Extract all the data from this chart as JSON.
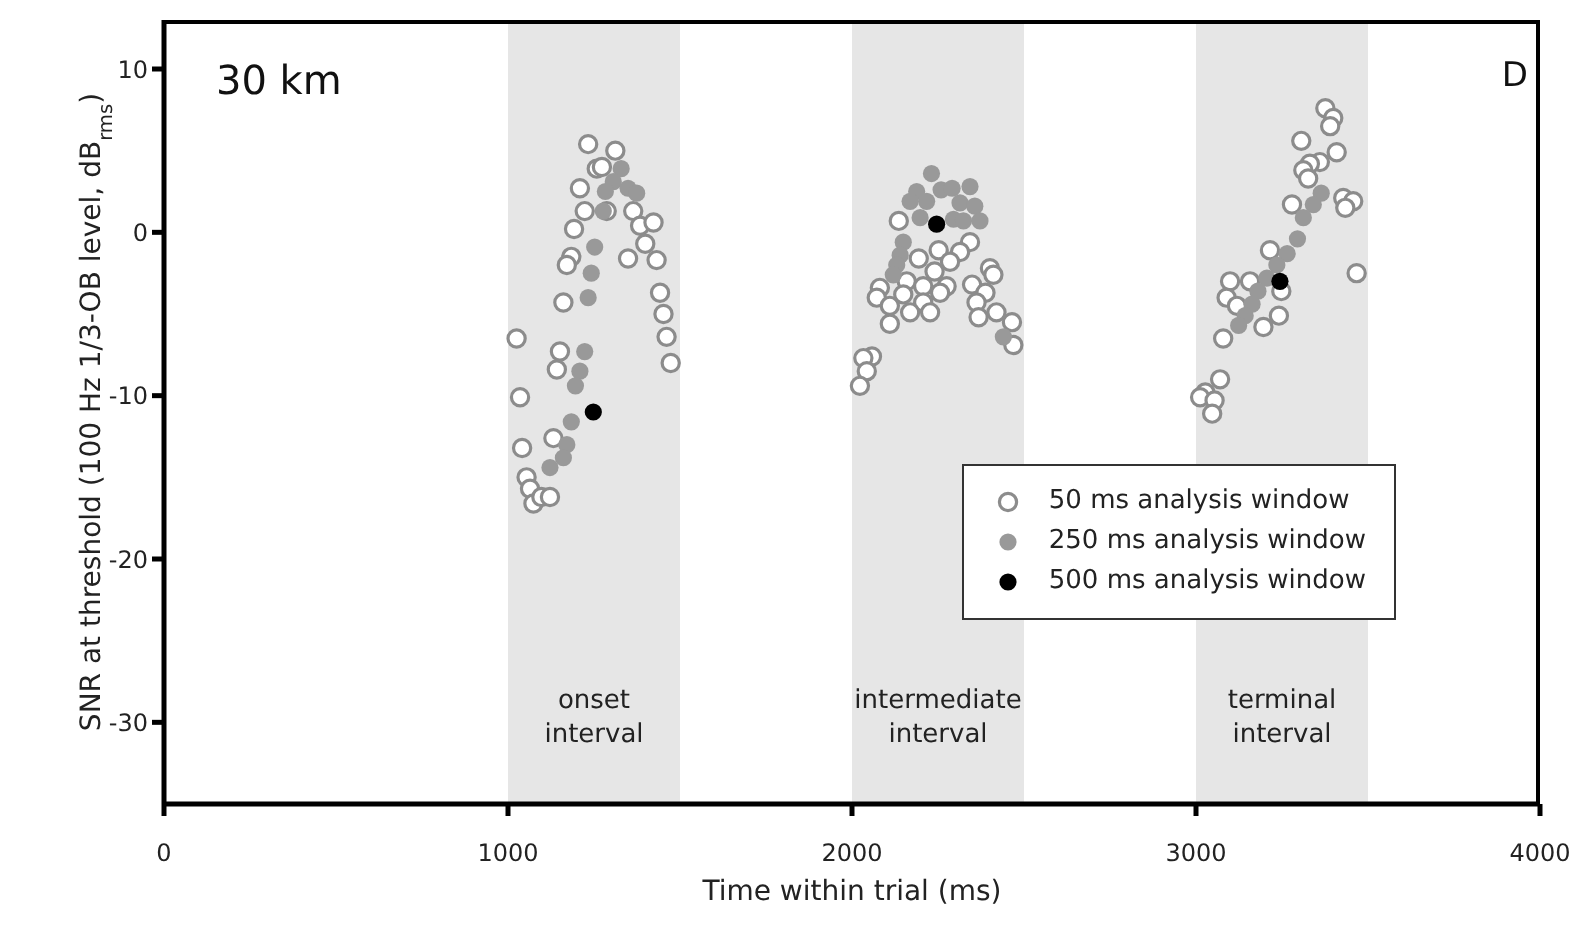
{
  "chart_data": {
    "type": "scatter",
    "xlabel": "Time within trial (ms)",
    "ylabel": "SNR at threshold (100 Hz 1/3-OB level, dB$_{rms}$)",
    "annotations": [
      "30 km",
      "D"
    ],
    "xlim": [
      0,
      4000
    ],
    "xticks": [
      0,
      1000,
      2000,
      3000,
      4000
    ],
    "ylim": [
      -35,
      13
    ],
    "yticks": [
      -30,
      -20,
      -10,
      0,
      10
    ],
    "grid": false,
    "legend": "right",
    "marker": "circle",
    "bands": [
      {
        "axis": "x",
        "from": 1000,
        "to": 1500,
        "label": "onset interval",
        "color": "#e6e6e6"
      },
      {
        "axis": "x",
        "from": 2000,
        "to": 2500,
        "label": "intermediate interval",
        "color": "#e6e6e6"
      },
      {
        "axis": "x",
        "from": 3000,
        "to": 3500,
        "label": "terminal interval",
        "color": "#e6e6e6"
      }
    ],
    "series": [
      {
        "name": "50 ms analysis window",
        "color": "#8c8c8c",
        "x": [
          1233,
          1312,
          1258,
          1273,
          1209,
          1223,
          1192,
          1184,
          1171,
          1161,
          1025,
          1151,
          1142,
          1035,
          1041,
          1132,
          1054,
          1064,
          1074,
          1097,
          1122,
          1364,
          1384,
          1423,
          1349,
          1399,
          1432,
          1442,
          1452,
          1461,
          1473,
          1287,
          2136,
          2343,
          2252,
          2194,
          2314,
          2285,
          2240,
          2401,
          2411,
          2081,
          2159,
          2207,
          2275,
          2349,
          2072,
          2149,
          2110,
          2256,
          2388,
          2362,
          2207,
          2169,
          2227,
          2368,
          2420,
          2110,
          2465,
          2469,
          2058,
          2033,
          2043,
          2023,
          3376,
          3399,
          3390,
          3306,
          3409,
          3360,
          3331,
          3312,
          3326,
          3428,
          3457,
          3434,
          3279,
          3467,
          3215,
          3099,
          3157,
          3089,
          3119,
          3248,
          3241,
          3196,
          3079,
          3070,
          3027,
          3012,
          3054,
          3047
        ],
        "values": [
          5.4,
          5.0,
          3.9,
          4.0,
          2.7,
          1.3,
          0.2,
          -1.5,
          -2.0,
          -4.3,
          -6.5,
          -7.3,
          -8.4,
          -10.1,
          -13.2,
          -12.6,
          -15.0,
          -15.7,
          -16.6,
          -16.2,
          -16.2,
          1.3,
          0.4,
          0.6,
          -1.6,
          -0.7,
          -1.7,
          -3.7,
          -5.0,
          -6.4,
          -8.0,
          1.3,
          0.7,
          -0.6,
          -1.1,
          -1.6,
          -1.2,
          -1.8,
          -2.4,
          -2.2,
          -2.6,
          -3.4,
          -3.0,
          -3.3,
          -3.3,
          -3.2,
          -4.0,
          -3.8,
          -4.5,
          -3.7,
          -3.7,
          -4.3,
          -4.3,
          -4.9,
          -4.9,
          -5.2,
          -4.9,
          -5.6,
          -5.5,
          -6.9,
          -7.6,
          -7.7,
          -8.5,
          -9.4,
          7.6,
          7.0,
          6.5,
          5.6,
          4.9,
          4.3,
          4.2,
          3.8,
          3.3,
          2.1,
          1.9,
          1.5,
          1.7,
          -2.5,
          -1.1,
          -3.0,
          -3.0,
          -4.0,
          -4.5,
          -3.6,
          -5.1,
          -5.8,
          -6.5,
          -9.0,
          -9.8,
          -10.1,
          -10.3,
          -11.1
        ]
      },
      {
        "name": "250 ms analysis window",
        "color": "#999999",
        "x": [
          1329,
          1306,
          1349,
          1374,
          1283,
          1277,
          1252,
          1242,
          1233,
          1223,
          1209,
          1196,
          1184,
          1171,
          1161,
          1142,
          1122,
          2231,
          2188,
          2259,
          2291,
          2343,
          2169,
          2217,
          2314,
          2357,
          2198,
          2295,
          2324,
          2372,
          2149,
          2140,
          2130,
          2120,
          2440,
          3364,
          3341,
          3312,
          3295,
          3265,
          3235,
          3206,
          3180,
          3163,
          3143,
          3124
        ],
        "values": [
          3.9,
          3.1,
          2.7,
          2.4,
          2.5,
          1.3,
          -0.9,
          -2.5,
          -4.0,
          -7.3,
          -8.5,
          -9.4,
          -11.6,
          -13.0,
          -13.8,
          null,
          -14.4,
          3.6,
          2.5,
          2.6,
          2.7,
          2.8,
          1.9,
          1.9,
          1.8,
          1.6,
          0.9,
          0.8,
          0.7,
          0.7,
          -0.6,
          -1.4,
          -2.0,
          -2.6,
          -6.4,
          2.4,
          1.7,
          0.9,
          -0.4,
          -1.3,
          -2.0,
          -2.8,
          -3.6,
          -4.4,
          -5.1,
          -5.7
        ]
      },
      {
        "name": "500 ms analysis window",
        "color": "#000000",
        "x": [
          1248,
          2246,
          3244
        ],
        "values": [
          -11.0,
          0.5,
          -3.0
        ]
      }
    ]
  }
}
